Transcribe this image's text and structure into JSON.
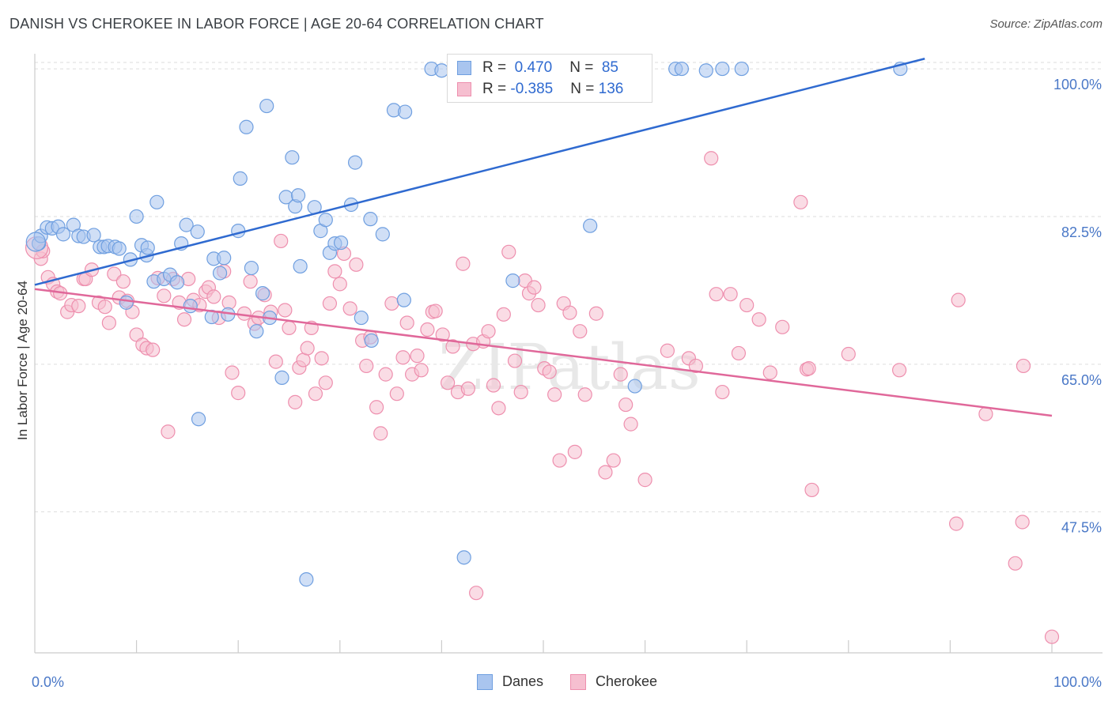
{
  "title": "DANISH VS CHEROKEE IN LABOR FORCE | AGE 20-64 CORRELATION CHART",
  "source": "Source: ZipAtlas.com",
  "watermark": "ZIPatlas",
  "colors": {
    "danes_fill": "#a9c5ef",
    "danes_stroke": "#6f9fe0",
    "danes_line": "#2f6ad0",
    "cherokee_fill": "#f6bfd0",
    "cherokee_stroke": "#ee8fae",
    "cherokee_line": "#e0689a",
    "grid": "#dddddd",
    "tick_text": "#4a78c7"
  },
  "legend": {
    "danes": {
      "r_label": "R = ",
      "r_value": " 0.470",
      "n_label": "N = ",
      "n_value": " 85"
    },
    "cherokee": {
      "r_label": "R = ",
      "r_value": "-0.385",
      "n_label": "N = ",
      "n_value": "136"
    }
  },
  "bottom_legend": {
    "danes": "Danes",
    "cherokee": "Cherokee"
  },
  "chart_data": {
    "type": "scatter",
    "title": "DANISH VS CHEROKEE IN LABOR FORCE | AGE 20-64 CORRELATION CHART",
    "xlabel": "",
    "ylabel": "In Labor Force | Age 20-64",
    "xlim": [
      0,
      100
    ],
    "ylim": [
      30.8,
      101.6
    ],
    "x_tick_labels": [
      "0.0%",
      "100.0%"
    ],
    "y_ticks": [
      47.5,
      65.0,
      82.5,
      100.0
    ],
    "y_tick_labels": [
      "47.5%",
      "65.0%",
      "82.5%",
      "100.0%"
    ],
    "grid": true,
    "legend_position": "top-center",
    "series": [
      {
        "name": "Danes",
        "trend": {
          "x": [
            0,
            87.5
          ],
          "y": [
            74.4,
            101.2
          ]
        },
        "points": [
          [
            0.4,
            79.3
          ],
          [
            0.6,
            80.2
          ],
          [
            1.2,
            81.2
          ],
          [
            1.7,
            81.1
          ],
          [
            2.3,
            81.3
          ],
          [
            2.8,
            80.4
          ],
          [
            3.8,
            81.5
          ],
          [
            4.3,
            80.2
          ],
          [
            4.8,
            80.1
          ],
          [
            5.8,
            80.3
          ],
          [
            6.4,
            78.9
          ],
          [
            6.8,
            78.9
          ],
          [
            7.2,
            79.0
          ],
          [
            7.9,
            78.9
          ],
          [
            8.3,
            78.7
          ],
          [
            9.0,
            72.3
          ],
          [
            9.4,
            77.4
          ],
          [
            10.0,
            82.5
          ],
          [
            10.5,
            79.1
          ],
          [
            11.0,
            77.9
          ],
          [
            11.1,
            78.8
          ],
          [
            11.7,
            74.8
          ],
          [
            12.0,
            84.2
          ],
          [
            12.7,
            75.1
          ],
          [
            13.3,
            75.6
          ],
          [
            14.0,
            74.7
          ],
          [
            14.4,
            79.3
          ],
          [
            14.9,
            81.5
          ],
          [
            15.3,
            71.9
          ],
          [
            16.0,
            80.7
          ],
          [
            16.1,
            58.5
          ],
          [
            17.4,
            70.6
          ],
          [
            17.6,
            77.5
          ],
          [
            18.2,
            75.8
          ],
          [
            18.6,
            77.6
          ],
          [
            19.0,
            70.9
          ],
          [
            20.0,
            80.8
          ],
          [
            20.2,
            87.0
          ],
          [
            20.8,
            93.1
          ],
          [
            21.3,
            76.4
          ],
          [
            21.8,
            68.9
          ],
          [
            22.4,
            73.4
          ],
          [
            22.8,
            95.6
          ],
          [
            23.1,
            70.5
          ],
          [
            24.3,
            63.4
          ],
          [
            24.7,
            84.8
          ],
          [
            25.3,
            89.5
          ],
          [
            25.6,
            83.7
          ],
          [
            25.9,
            85.0
          ],
          [
            26.1,
            76.6
          ],
          [
            26.7,
            39.5
          ],
          [
            27.5,
            83.6
          ],
          [
            28.1,
            80.8
          ],
          [
            28.6,
            82.1
          ],
          [
            29.0,
            78.2
          ],
          [
            29.5,
            79.3
          ],
          [
            30.1,
            79.4
          ],
          [
            31.1,
            83.9
          ],
          [
            31.5,
            88.9
          ],
          [
            32.1,
            70.5
          ],
          [
            33.0,
            82.2
          ],
          [
            33.1,
            67.8
          ],
          [
            34.2,
            80.4
          ],
          [
            35.3,
            95.1
          ],
          [
            36.3,
            72.6
          ],
          [
            36.4,
            94.9
          ],
          [
            39.0,
            100.0
          ],
          [
            40.0,
            99.8
          ],
          [
            41.2,
            100.0
          ],
          [
            42.2,
            42.1
          ],
          [
            47.0,
            74.9
          ],
          [
            47.3,
            100.0
          ],
          [
            48.3,
            100.0
          ],
          [
            49.6,
            100.0
          ],
          [
            50.1,
            100.0
          ],
          [
            51.0,
            100.0
          ],
          [
            51.6,
            99.8
          ],
          [
            54.6,
            81.4
          ],
          [
            59.0,
            62.4
          ],
          [
            63.0,
            100.0
          ],
          [
            63.6,
            100.0
          ],
          [
            66.0,
            99.8
          ],
          [
            67.6,
            100.0
          ],
          [
            69.5,
            100.0
          ],
          [
            85.1,
            100.0
          ]
        ]
      },
      {
        "name": "Cherokee",
        "trend": {
          "x": [
            0,
            100
          ],
          "y": [
            73.9,
            58.9
          ]
        },
        "points": [
          [
            0.6,
            77.5
          ],
          [
            0.8,
            78.4
          ],
          [
            1.3,
            75.3
          ],
          [
            1.8,
            74.5
          ],
          [
            2.2,
            73.6
          ],
          [
            2.5,
            73.4
          ],
          [
            3.2,
            71.2
          ],
          [
            3.6,
            72.0
          ],
          [
            4.3,
            71.9
          ],
          [
            4.8,
            75.1
          ],
          [
            5.0,
            75.1
          ],
          [
            5.6,
            76.2
          ],
          [
            6.3,
            72.3
          ],
          [
            6.9,
            71.8
          ],
          [
            7.3,
            69.9
          ],
          [
            7.8,
            75.7
          ],
          [
            8.3,
            72.9
          ],
          [
            8.7,
            74.8
          ],
          [
            9.1,
            72.5
          ],
          [
            9.6,
            71.2
          ],
          [
            10.0,
            68.5
          ],
          [
            10.6,
            67.3
          ],
          [
            11.0,
            66.9
          ],
          [
            11.6,
            66.7
          ],
          [
            12.1,
            75.2
          ],
          [
            12.7,
            73.1
          ],
          [
            13.1,
            57.0
          ],
          [
            13.6,
            75.1
          ],
          [
            14.2,
            72.3
          ],
          [
            14.7,
            70.3
          ],
          [
            15.1,
            75.1
          ],
          [
            15.6,
            72.6
          ],
          [
            16.2,
            72.0
          ],
          [
            16.8,
            73.6
          ],
          [
            17.1,
            74.1
          ],
          [
            17.6,
            73.0
          ],
          [
            18.1,
            70.5
          ],
          [
            18.6,
            76.0
          ],
          [
            19.1,
            72.3
          ],
          [
            19.4,
            64.0
          ],
          [
            20.0,
            61.6
          ],
          [
            20.6,
            71.0
          ],
          [
            21.2,
            74.8
          ],
          [
            21.6,
            69.8
          ],
          [
            22.0,
            70.5
          ],
          [
            22.6,
            73.2
          ],
          [
            23.2,
            71.2
          ],
          [
            23.7,
            65.3
          ],
          [
            24.2,
            79.6
          ],
          [
            24.6,
            71.4
          ],
          [
            25.0,
            69.3
          ],
          [
            25.6,
            60.5
          ],
          [
            26.0,
            64.6
          ],
          [
            26.4,
            65.5
          ],
          [
            26.8,
            66.9
          ],
          [
            27.2,
            69.3
          ],
          [
            27.6,
            61.5
          ],
          [
            28.2,
            65.7
          ],
          [
            28.6,
            62.8
          ],
          [
            29.0,
            72.2
          ],
          [
            29.5,
            76.0
          ],
          [
            30.0,
            74.5
          ],
          [
            30.4,
            78.1
          ],
          [
            31.0,
            71.6
          ],
          [
            31.6,
            76.8
          ],
          [
            32.2,
            67.8
          ],
          [
            32.6,
            64.8
          ],
          [
            33.0,
            68.2
          ],
          [
            33.6,
            59.9
          ],
          [
            34.0,
            56.8
          ],
          [
            34.5,
            63.8
          ],
          [
            35.1,
            72.2
          ],
          [
            35.6,
            61.5
          ],
          [
            36.2,
            65.8
          ],
          [
            36.6,
            69.9
          ],
          [
            37.1,
            63.8
          ],
          [
            37.6,
            66.0
          ],
          [
            38.0,
            64.3
          ],
          [
            38.6,
            69.1
          ],
          [
            39.1,
            71.2
          ],
          [
            39.4,
            71.3
          ],
          [
            40.1,
            68.5
          ],
          [
            40.6,
            62.8
          ],
          [
            41.1,
            67.1
          ],
          [
            41.6,
            61.7
          ],
          [
            42.1,
            76.9
          ],
          [
            42.6,
            62.1
          ],
          [
            43.1,
            67.4
          ],
          [
            43.4,
            37.9
          ],
          [
            44.1,
            67.7
          ],
          [
            44.6,
            68.9
          ],
          [
            45.1,
            62.5
          ],
          [
            45.6,
            59.8
          ],
          [
            46.1,
            70.9
          ],
          [
            46.6,
            78.3
          ],
          [
            47.2,
            65.4
          ],
          [
            47.8,
            61.7
          ],
          [
            48.2,
            74.9
          ],
          [
            48.6,
            73.4
          ],
          [
            49.1,
            74.1
          ],
          [
            49.5,
            72.0
          ],
          [
            50.1,
            64.5
          ],
          [
            50.6,
            64.1
          ],
          [
            51.1,
            61.4
          ],
          [
            51.6,
            53.6
          ],
          [
            52.0,
            72.2
          ],
          [
            52.6,
            71.1
          ],
          [
            53.1,
            54.6
          ],
          [
            53.6,
            68.9
          ],
          [
            54.1,
            61.4
          ],
          [
            55.2,
            71.0
          ],
          [
            56.1,
            52.2
          ],
          [
            56.9,
            53.6
          ],
          [
            57.6,
            63.8
          ],
          [
            58.1,
            60.2
          ],
          [
            58.6,
            57.9
          ],
          [
            60.0,
            51.3
          ],
          [
            62.2,
            66.6
          ],
          [
            64.3,
            65.7
          ],
          [
            65.0,
            64.8
          ],
          [
            66.5,
            89.4
          ],
          [
            67.0,
            73.3
          ],
          [
            67.6,
            61.7
          ],
          [
            68.4,
            73.3
          ],
          [
            69.2,
            66.3
          ],
          [
            70.0,
            72.0
          ],
          [
            71.2,
            70.3
          ],
          [
            72.3,
            64.0
          ],
          [
            73.5,
            69.4
          ],
          [
            75.3,
            84.2
          ],
          [
            75.9,
            64.4
          ],
          [
            76.1,
            64.5
          ],
          [
            76.4,
            50.1
          ],
          [
            80.0,
            66.2
          ],
          [
            85.0,
            64.3
          ],
          [
            90.6,
            46.1
          ],
          [
            90.8,
            72.6
          ],
          [
            93.5,
            59.1
          ],
          [
            96.4,
            41.4
          ],
          [
            97.1,
            46.3
          ],
          [
            97.2,
            64.8
          ],
          [
            100.0,
            32.7
          ]
        ]
      }
    ]
  }
}
